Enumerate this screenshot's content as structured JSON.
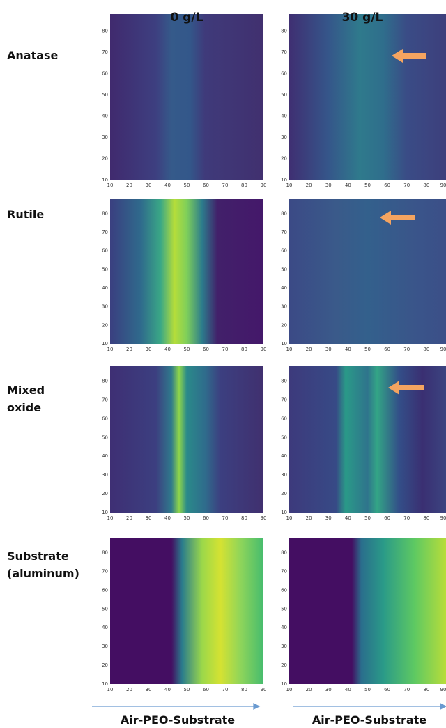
{
  "column_titles": [
    "0 g/L",
    "30 g/L"
  ],
  "row_labels": [
    [
      "Anatase"
    ],
    [
      "Rutile"
    ],
    [
      "Mixed",
      "oxide"
    ],
    [
      "Substrate",
      "(aluminum)"
    ]
  ],
  "xticks": [
    10,
    20,
    30,
    40,
    50,
    60,
    70,
    80,
    90
  ],
  "yticks": [
    10,
    20,
    30,
    40,
    50,
    60,
    70,
    80
  ],
  "footer_labels": [
    "Air-PEO-Substrate",
    "Air-PEO-Substrate"
  ]
}
